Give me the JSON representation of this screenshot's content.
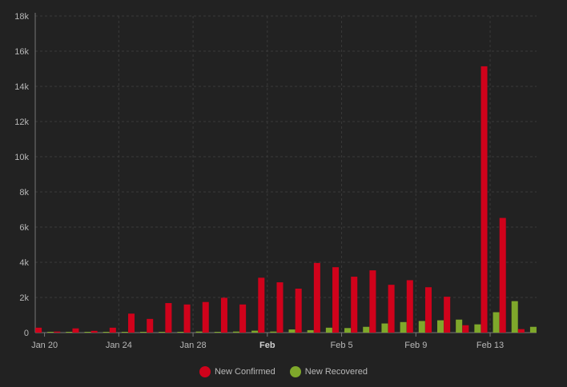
{
  "chart_data": {
    "type": "bar",
    "categories": [
      "2020-01-20",
      "2020-01-21",
      "2020-01-22",
      "2020-01-23",
      "2020-01-24",
      "2020-01-25",
      "2020-01-26",
      "2020-01-27",
      "2020-01-28",
      "2020-01-29",
      "2020-01-30",
      "2020-01-31",
      "2020-02-01",
      "2020-02-02",
      "2020-02-03",
      "2020-02-04",
      "2020-02-05",
      "2020-02-06",
      "2020-02-07",
      "2020-02-08",
      "2020-02-09",
      "2020-02-10",
      "2020-02-11",
      "2020-02-12",
      "2020-02-13",
      "2020-02-14",
      "2020-02-15"
    ],
    "series": [
      {
        "name": "New Confirmed",
        "color": "#d0021b",
        "values": [
          280,
          60,
          240,
          100,
          280,
          1080,
          780,
          1680,
          1600,
          1740,
          1980,
          1600,
          3120,
          2860,
          2500,
          3960,
          3720,
          3180,
          3540,
          2720,
          2980,
          2580,
          2040,
          420,
          15140,
          6520,
          200
        ]
      },
      {
        "name": "New Recovered",
        "color": "#7fa82b",
        "values": [
          10,
          10,
          10,
          10,
          20,
          20,
          20,
          30,
          60,
          40,
          60,
          110,
          60,
          180,
          140,
          280,
          260,
          330,
          520,
          600,
          660,
          700,
          740,
          470,
          1160,
          1790,
          330
        ]
      }
    ],
    "x_tick_labels": [
      {
        "date": "2020-01-20",
        "label": "Jan 20",
        "bold": false
      },
      {
        "date": "2020-01-24",
        "label": "Jan 24",
        "bold": false
      },
      {
        "date": "2020-01-28",
        "label": "Jan 28",
        "bold": false
      },
      {
        "date": "2020-02-01",
        "label": "Feb",
        "bold": true
      },
      {
        "date": "2020-02-05",
        "label": "Feb 5",
        "bold": false
      },
      {
        "date": "2020-02-09",
        "label": "Feb 9",
        "bold": false
      },
      {
        "date": "2020-02-13",
        "label": "Feb 13",
        "bold": false
      }
    ],
    "y_ticks": [
      0,
      2000,
      4000,
      6000,
      8000,
      10000,
      12000,
      14000,
      16000,
      18000
    ],
    "y_tick_labels": [
      "0",
      "2k",
      "4k",
      "6k",
      "8k",
      "10k",
      "12k",
      "14k",
      "16k",
      "18k"
    ],
    "ylim": [
      0,
      18000
    ],
    "title": "",
    "xlabel": "",
    "ylabel": "",
    "grid": true,
    "legend_position": "bottom-center"
  },
  "colors": {
    "background": "#222222",
    "grid": "#3a3a3a",
    "axis": "#777777"
  },
  "legend": [
    {
      "label": "New Confirmed",
      "color": "#d0021b"
    },
    {
      "label": "New Recovered",
      "color": "#7fa82b"
    }
  ]
}
